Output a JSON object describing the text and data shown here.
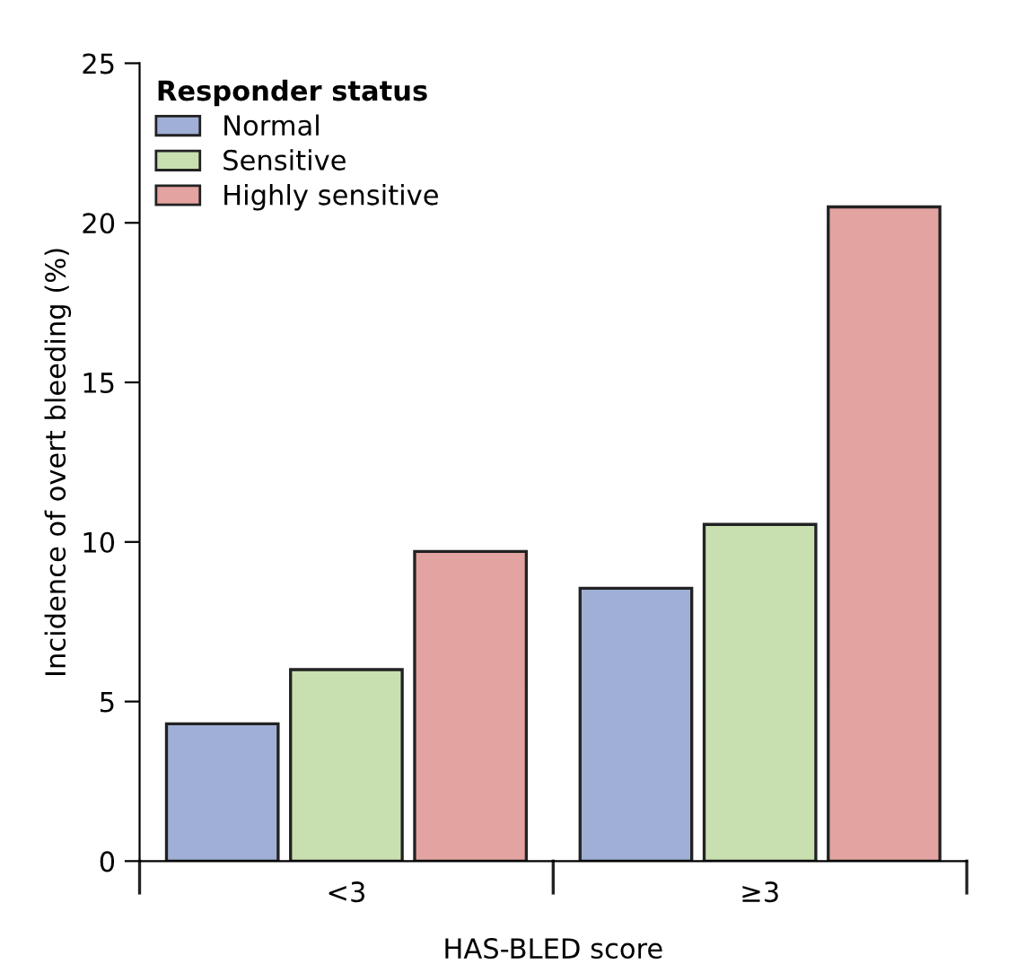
{
  "chart_data": {
    "type": "bar",
    "xlabel": "HAS-BLED score",
    "ylabel": "Incidence of overt bleeding (%)",
    "legend_title": "Responder status",
    "categories": [
      "<3",
      "≥3"
    ],
    "series": [
      {
        "name": "Normal",
        "color": "#9fafd6",
        "values": [
          4.3,
          8.55
        ]
      },
      {
        "name": "Sensitive",
        "color": "#c8e0b0",
        "values": [
          6.0,
          10.55
        ]
      },
      {
        "name": "Highly sensitive",
        "color": "#e3a3a1",
        "values": [
          9.7,
          20.5
        ]
      }
    ],
    "ylim": [
      0,
      25
    ],
    "yticks": [
      0,
      5,
      10,
      15,
      20,
      25
    ],
    "grid": false,
    "legend": "top left"
  }
}
